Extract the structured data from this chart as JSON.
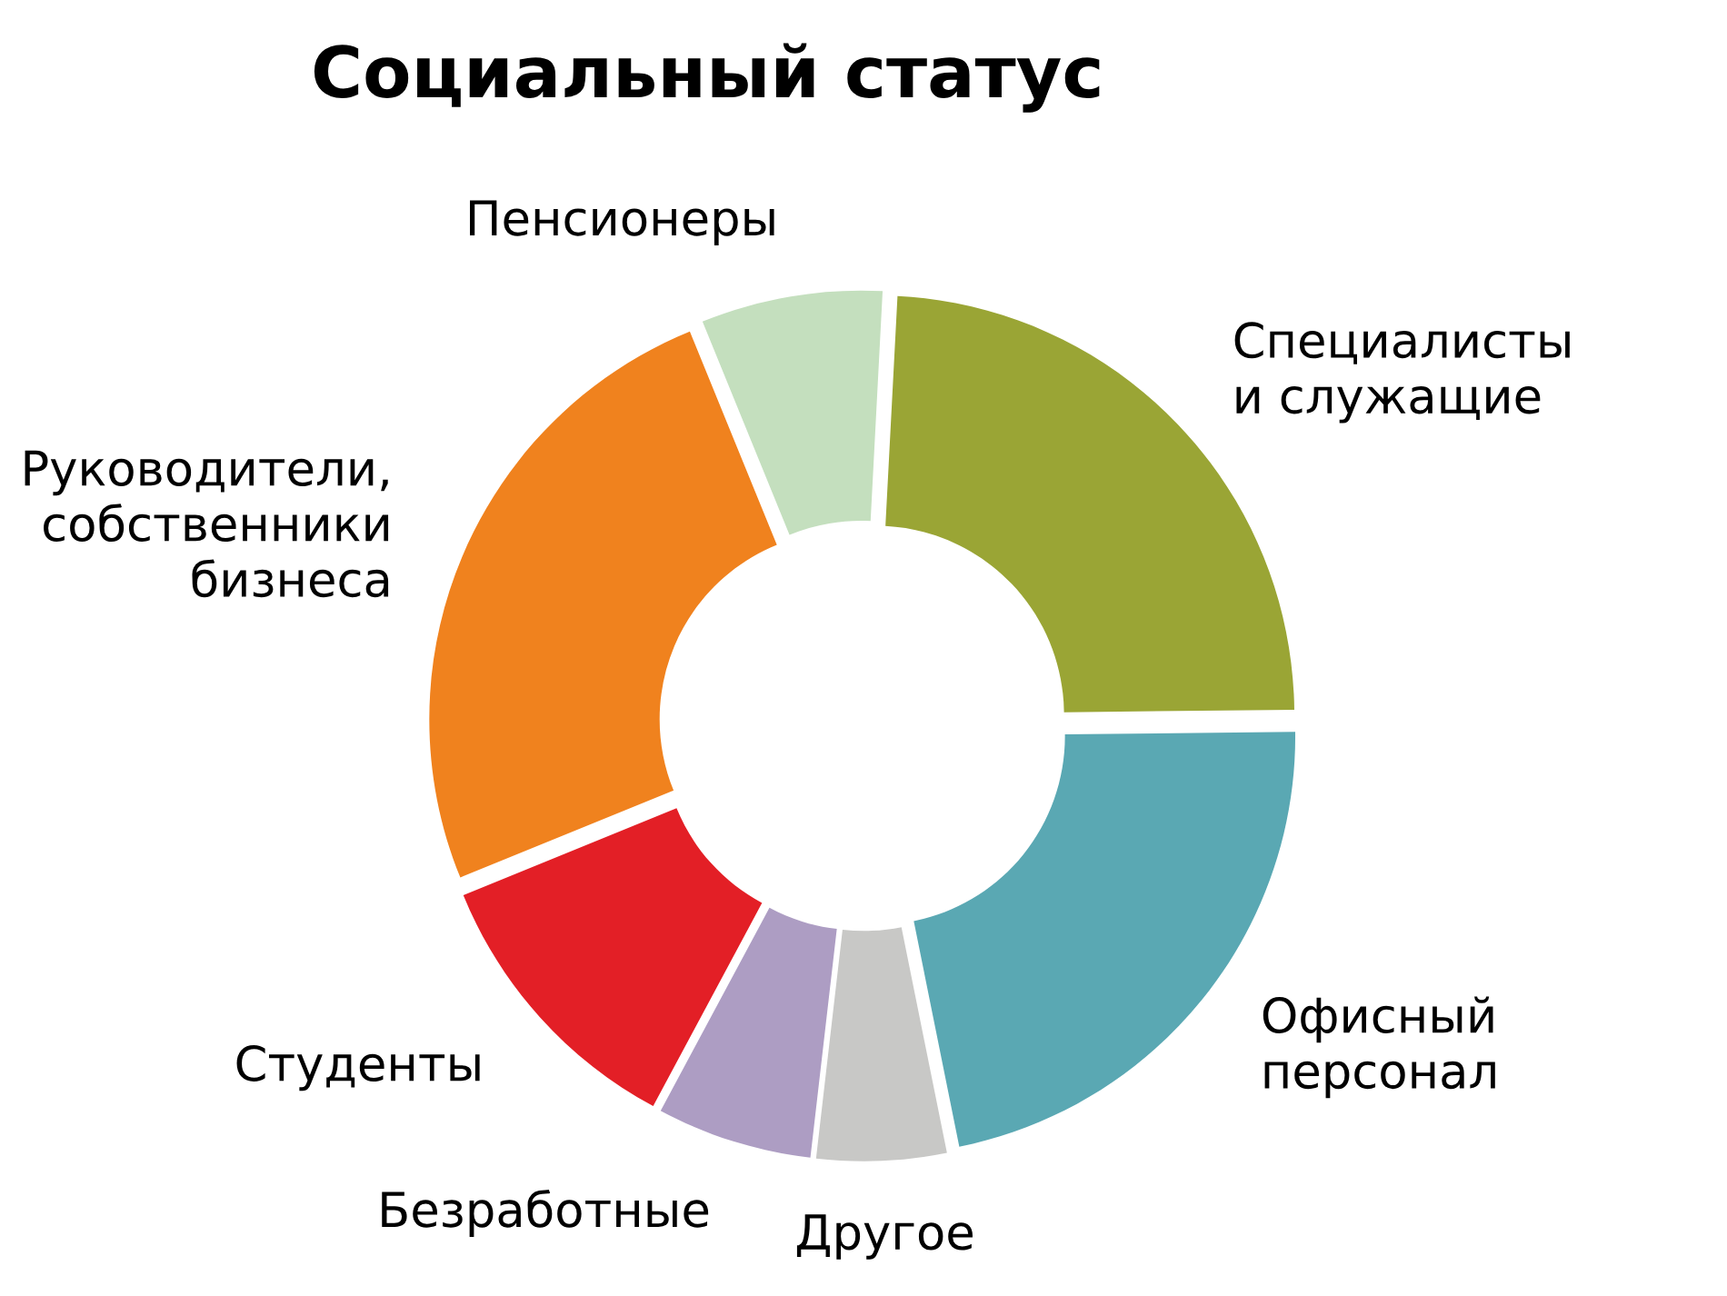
{
  "chart_data": {
    "type": "donut",
    "title": "Социальный статус",
    "categories": [
      "Специалисты\nи служащие",
      "Офисный\nперсонал",
      "Другое",
      "Безработные",
      "Студенты",
      "Руководители,\nсобственники\nбизнеса",
      "Пенсионеры"
    ],
    "values": [
      24,
      22,
      5,
      6,
      11,
      25,
      7
    ],
    "colors": [
      "#9aa535",
      "#5aa8b3",
      "#c8c8c6",
      "#ad9dc3",
      "#e31f26",
      "#f0821e",
      "#c4dfbe"
    ]
  }
}
